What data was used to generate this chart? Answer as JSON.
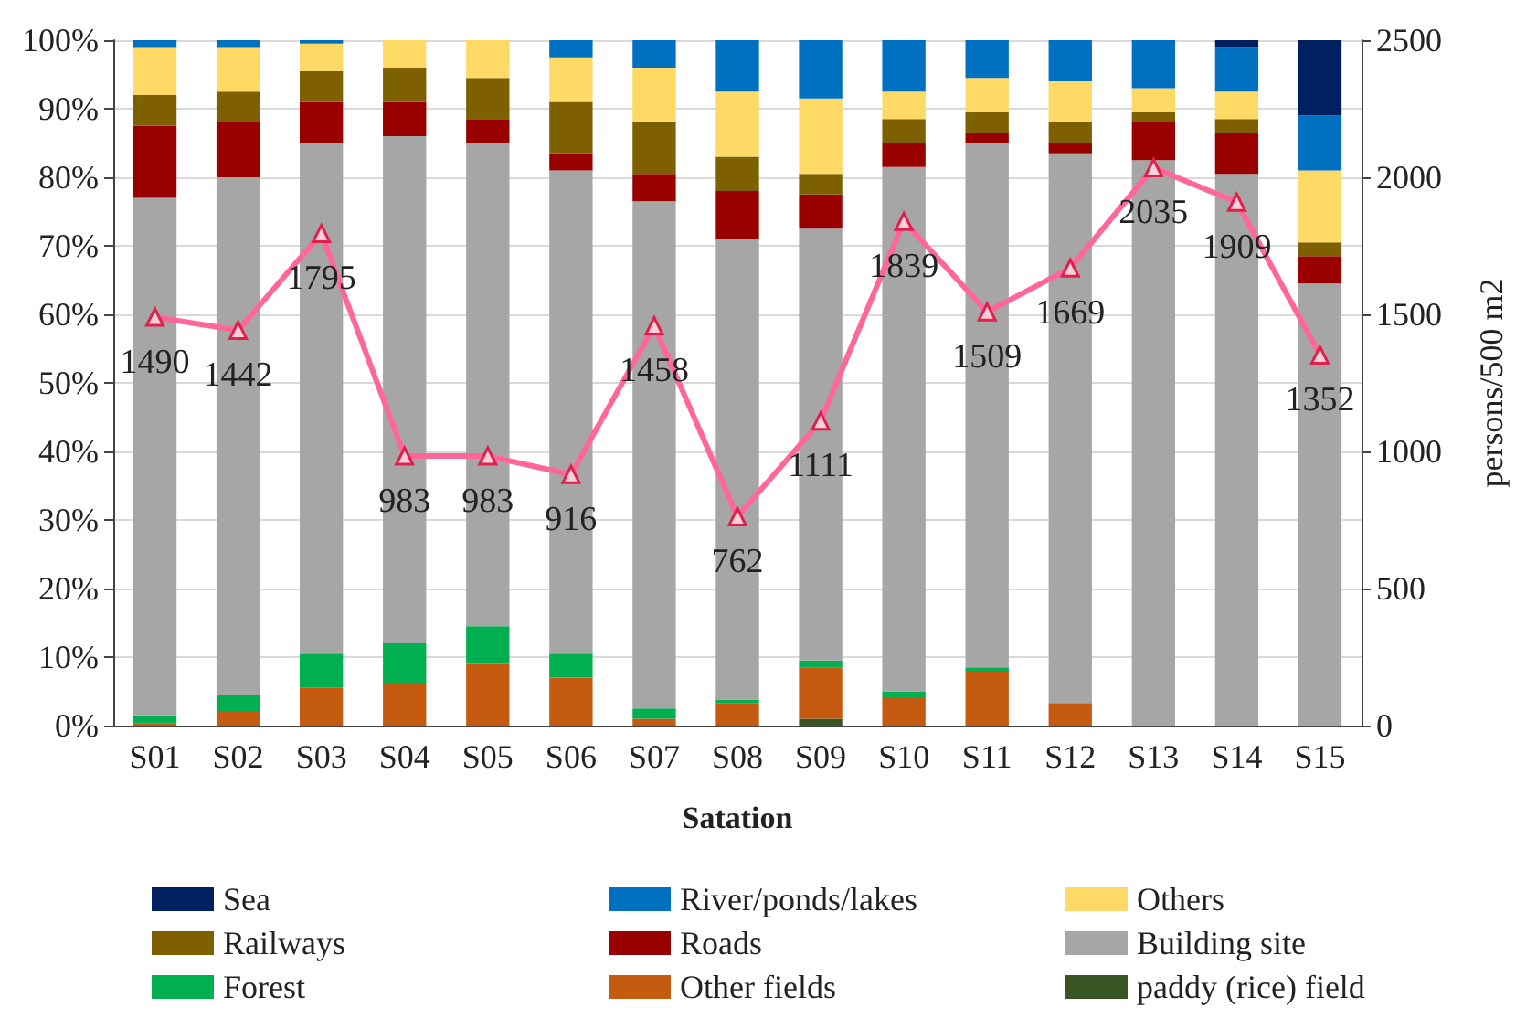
{
  "chart_data": {
    "type": "bar",
    "stacked": true,
    "xlabel": "Satation",
    "y2label": "persons/500 m2",
    "categories": [
      "S01",
      "S02",
      "S03",
      "S04",
      "S05",
      "S06",
      "S07",
      "S08",
      "S09",
      "S10",
      "S11",
      "S12",
      "S13",
      "S14",
      "S15"
    ],
    "ylim": [
      0,
      100
    ],
    "yticks": [
      {
        "value": 0,
        "label": "0%"
      },
      {
        "value": 10,
        "label": "10%"
      },
      {
        "value": 20,
        "label": "20%"
      },
      {
        "value": 30,
        "label": "30%"
      },
      {
        "value": 40,
        "label": "40%"
      },
      {
        "value": 50,
        "label": "50%"
      },
      {
        "value": 60,
        "label": "60%"
      },
      {
        "value": 70,
        "label": "70%"
      },
      {
        "value": 80,
        "label": "80%"
      },
      {
        "value": 90,
        "label": "90%"
      },
      {
        "value": 100,
        "label": "100%"
      }
    ],
    "y2lim": [
      0,
      2500
    ],
    "y2ticks": [
      0,
      500,
      1000,
      1500,
      2000,
      2500
    ],
    "grid": "y",
    "legend": "bottom",
    "series": [
      {
        "name": "paddy (rice) field",
        "color": "#375623",
        "values": [
          0,
          0,
          0,
          0,
          0,
          0,
          0,
          0,
          1,
          0,
          0,
          0,
          0,
          0,
          0
        ]
      },
      {
        "name": "Other fields",
        "color": "#c55a11",
        "values": [
          0.3,
          2,
          5.5,
          6,
          9,
          7,
          1,
          3.3,
          7.5,
          4,
          8,
          3.3,
          0,
          0,
          0
        ]
      },
      {
        "name": "Forest",
        "color": "#00b050",
        "values": [
          1.2,
          2.5,
          5,
          6,
          5.5,
          3.5,
          1.5,
          0.5,
          1,
          1,
          0.5,
          0,
          0,
          0,
          0
        ]
      },
      {
        "name": "Building site",
        "color": "#a6a6a6",
        "values": [
          75.5,
          75.5,
          74.5,
          74,
          70.5,
          70.5,
          74,
          67.2,
          63,
          76.5,
          76.5,
          80.2,
          82.5,
          80.5,
          64.5
        ]
      },
      {
        "name": "Roads",
        "color": "#990000",
        "values": [
          10.5,
          8,
          6,
          5,
          3.5,
          2.5,
          4,
          7,
          5,
          3.5,
          1.5,
          1.5,
          5.5,
          6,
          4
        ]
      },
      {
        "name": "Railways",
        "color": "#7f6000",
        "values": [
          4.5,
          4.5,
          4.5,
          5,
          6,
          7.5,
          7.5,
          5,
          3,
          3.5,
          3,
          3,
          1.5,
          2,
          2
        ]
      },
      {
        "name": "Others",
        "color": "#ffd966",
        "values": [
          7,
          6.5,
          4,
          4,
          5.5,
          6.5,
          8,
          9.5,
          11,
          4,
          5,
          6,
          3.5,
          4,
          10.5
        ]
      },
      {
        "name": "River/ponds/lakes",
        "color": "#0070c0",
        "values": [
          1,
          1,
          0.5,
          0,
          0,
          2.5,
          4,
          7.5,
          8.5,
          7.5,
          5.5,
          6,
          7,
          6.5,
          8
        ]
      },
      {
        "name": "Sea",
        "color": "#002060",
        "values": [
          0,
          0,
          0,
          0,
          0,
          0,
          0,
          0,
          0,
          0,
          0,
          0,
          0,
          1,
          11
        ]
      },
      {
        "type": "line",
        "axis": "y2",
        "color": "#ff6699",
        "marker": "triangle",
        "values": [
          1490,
          1442,
          1795,
          983,
          983,
          916,
          1458,
          762,
          1111,
          1839,
          1509,
          1669,
          2035,
          1909,
          1352
        ],
        "value_labels": [
          "1490",
          "1442",
          "1795",
          "983",
          "983",
          "916",
          "1458",
          "762",
          "1111",
          "1839",
          "1509",
          "1669",
          "2035",
          "1909",
          "1352"
        ]
      }
    ]
  }
}
